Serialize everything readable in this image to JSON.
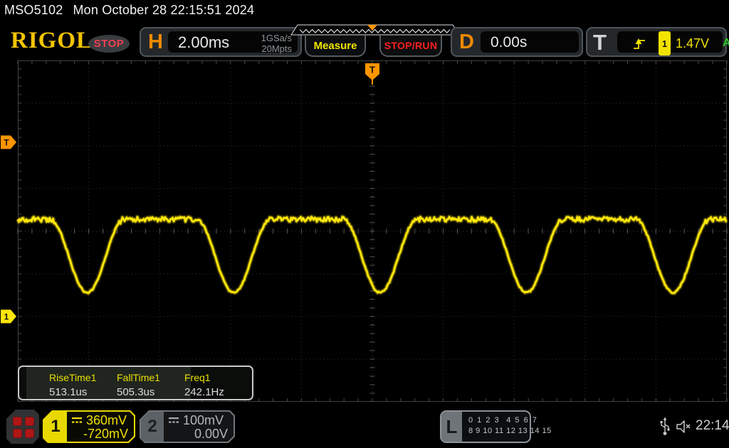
{
  "top_bar": {
    "model": "MSO5102",
    "datetime": "Mon October 28 22:15:51 2024"
  },
  "header": {
    "brand": "RIGOL",
    "acq_status": "STOP",
    "horizontal": {
      "label": "H",
      "scale": "2.00ms",
      "sample_rate": "1GSa/s",
      "mem_depth": "20Mpts"
    },
    "buttons": {
      "measure": "Measure",
      "stop_run": "STOP/RUN"
    },
    "delay": {
      "label": "D",
      "value": "0.00s"
    },
    "trigger": {
      "label": "T",
      "slope_icon": "rising-edge",
      "source_channel": "1",
      "level": "1.47V",
      "sweep_mode": "A"
    }
  },
  "display": {
    "trigger_position_marker": "T",
    "trigger_level_marker": "T",
    "ch1_ground_marker": "1"
  },
  "measurements": {
    "items": [
      {
        "label": "RiseTime1",
        "value": "513.1us"
      },
      {
        "label": "FallTime1",
        "value": "505.3us"
      },
      {
        "label": "Freq1",
        "value": "242.1Hz"
      }
    ]
  },
  "bottom_bar": {
    "ch1": {
      "number": "1",
      "scale": "360mV",
      "offset": "-720mV",
      "coupling_icon": "dc-coupling"
    },
    "ch2": {
      "number": "2",
      "scale": "100mV",
      "offset": "0.00V",
      "coupling_icon": "dc-coupling"
    },
    "logic": {
      "label": "L",
      "row1": "0 1 2 3  4 5 6 7",
      "row2": "8 9 10 11 12 13 14 15"
    },
    "clock": "22:14"
  },
  "colors": {
    "ch1_yellow": "#ffe60a",
    "marker_orange": "#ff9500",
    "stop_red": "#ff1f1f",
    "sweep_green": "#28c828",
    "grid_line": "#2e2e2e",
    "grid_center": "#3a3a3a",
    "grid_tick": "#585858",
    "grid_border": "#3f3f3f"
  },
  "chart_data": {
    "type": "line",
    "source": "CH1",
    "timebase_ms_per_div": 2.0,
    "horizontal_divs": 10,
    "vertical_divs": 8,
    "ch1_volts_per_div": 0.36,
    "ch1_offset_v": -0.72,
    "trigger_level_v": 1.47,
    "trigger_delay_s": 0.0,
    "waveform": {
      "shape": "flat high level with periodic rounded negative dips",
      "flat_top_v": 0.82,
      "dip_bottom_v": 0.2,
      "frequency_hz": 242.1,
      "dip_center_offset_ms": 0.22,
      "dip_half_width_ms": 1.05,
      "noise_v": 0.015,
      "rise_time_us": 513.1,
      "fall_time_us": 505.3
    }
  }
}
